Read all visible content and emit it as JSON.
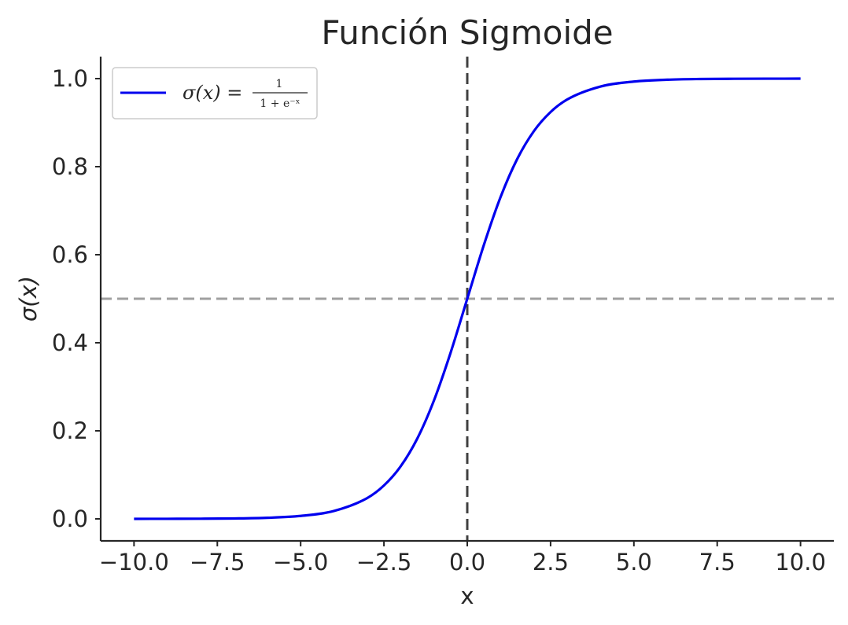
{
  "chart_data": {
    "type": "line",
    "title": "Función Sigmoide",
    "xlabel": "x",
    "ylabel": "σ(x)",
    "xlim": [
      -11.0,
      11.0
    ],
    "ylim": [
      -0.05,
      1.05
    ],
    "x_ticks": [
      -10.0,
      -7.5,
      -5.0,
      -2.5,
      0.0,
      2.5,
      5.0,
      7.5,
      10.0
    ],
    "x_tick_labels": [
      "−10.0",
      "−7.5",
      "−5.0",
      "−2.5",
      "0.0",
      "2.5",
      "5.0",
      "7.5",
      "10.0"
    ],
    "y_ticks": [
      0.0,
      0.2,
      0.4,
      0.6,
      0.8,
      1.0
    ],
    "y_tick_labels": [
      "0.0",
      "0.2",
      "0.4",
      "0.6",
      "0.8",
      "1.0"
    ],
    "grid": false,
    "legend_position": "top-left",
    "series": [
      {
        "name": "σ(x) = 1/(1+e^−x)",
        "color": "#0000ee",
        "x": [
          -10,
          -9,
          -8,
          -7,
          -6,
          -5,
          -4,
          -3,
          -2.5,
          -2,
          -1.5,
          -1,
          -0.5,
          0,
          0.5,
          1,
          1.5,
          2,
          2.5,
          3,
          4,
          5,
          6,
          7,
          8,
          9,
          10
        ],
        "y": [
          4.54e-05,
          0.000123,
          0.000335,
          0.000911,
          0.00247,
          0.00669,
          0.018,
          0.0474,
          0.0759,
          0.1192,
          0.1824,
          0.2689,
          0.3775,
          0.5,
          0.6225,
          0.7311,
          0.8176,
          0.8808,
          0.9241,
          0.9526,
          0.982,
          0.9933,
          0.9975,
          0.9991,
          0.99966,
          0.99988,
          0.99995
        ]
      }
    ],
    "reference_lines": [
      {
        "orientation": "horizontal",
        "value": 0.5,
        "style": "dashed",
        "color": "#a0a0a0"
      },
      {
        "orientation": "vertical",
        "value": 0.0,
        "style": "dashed",
        "color": "#404040"
      }
    ],
    "legend": {
      "label_sigma": "σ(x) =",
      "frac_numerator": "1",
      "frac_denominator": "1 + e⁻ˣ"
    }
  }
}
